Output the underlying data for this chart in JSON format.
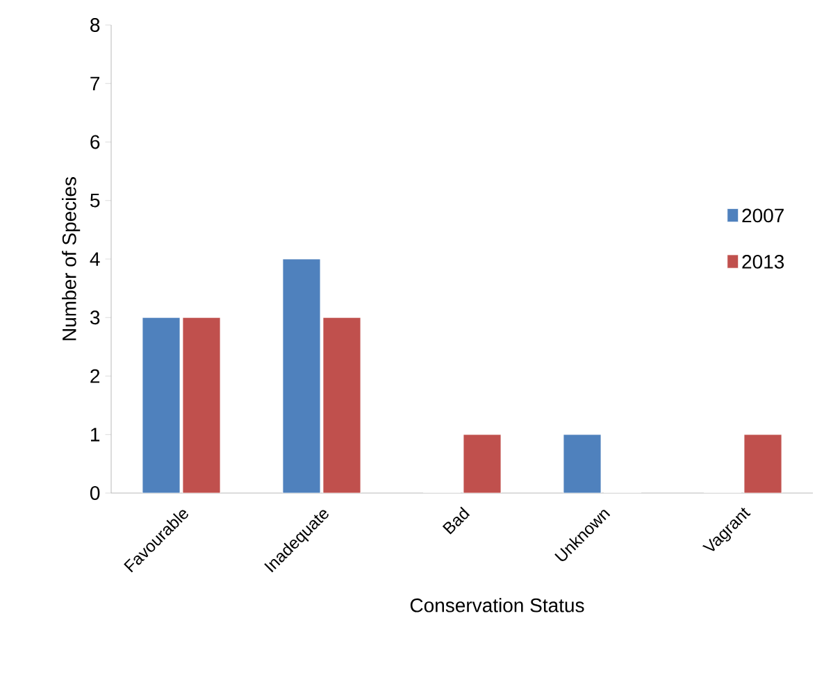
{
  "chart_data": {
    "type": "bar",
    "xlabel": "Conservation Status",
    "ylabel": "Number of Species",
    "categories": [
      "Favourable",
      "Inadequate",
      "Bad",
      "Unknown",
      "Vagrant"
    ],
    "series": [
      {
        "name": "2007",
        "color": "#4f81bd",
        "values": [
          3,
          4,
          0,
          1,
          0
        ]
      },
      {
        "name": "2013",
        "color": "#c0504d",
        "values": [
          3,
          3,
          1,
          0,
          1
        ]
      }
    ],
    "ylim": [
      0,
      8
    ],
    "yticks": [
      0,
      1,
      2,
      3,
      4,
      5,
      6,
      7,
      8
    ],
    "grid": false,
    "legend": "right"
  }
}
